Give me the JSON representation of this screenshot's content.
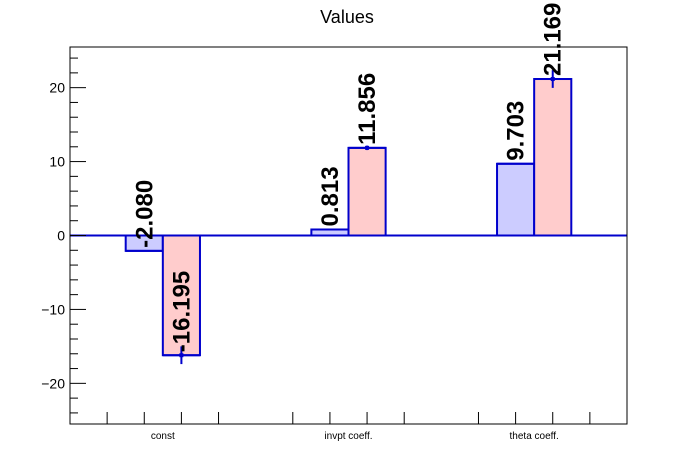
{
  "chart_data": {
    "type": "bar",
    "title": "Values",
    "xlabel": "",
    "ylabel": "",
    "categories": [
      "const",
      "invpt coeff.",
      "theta coeff."
    ],
    "series": [
      {
        "values": [
          -2.08,
          0.813,
          9.703
        ],
        "labels": [
          "-2.080",
          "0.813",
          "9.703"
        ],
        "errors": [
          0,
          0,
          0
        ],
        "fill": "#ccccff",
        "stroke": "#0000cc"
      },
      {
        "values": [
          -16.195,
          11.856,
          21.169
        ],
        "labels": [
          "-16.195",
          "11.856",
          "21.169"
        ],
        "errors": [
          1.2,
          0.3,
          1.2
        ],
        "fill": "#ffcccc",
        "stroke": "#0000cc"
      }
    ],
    "ylim": [
      -25.5,
      25.5
    ],
    "yticks": [
      -20,
      -10,
      0,
      10,
      20
    ],
    "ytick_labels": [
      "−20",
      "−10",
      "0",
      "10",
      "20"
    ],
    "grid": false,
    "legend": "none"
  }
}
